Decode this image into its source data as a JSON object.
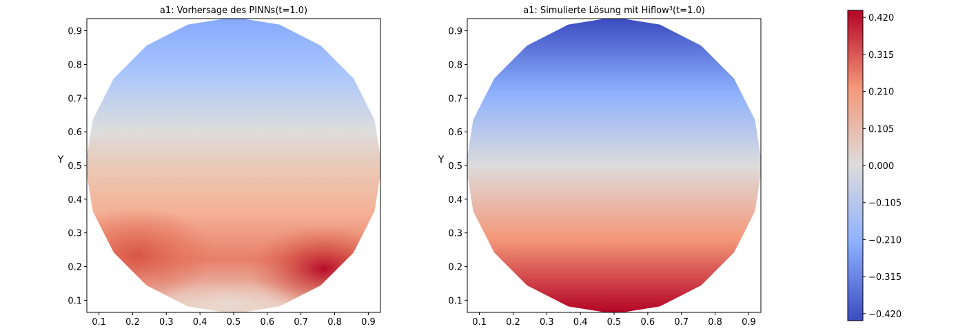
{
  "chart_data": [
    {
      "type": "heatmap",
      "title": "a1: Vorhersage des PINNs(t=1.0)",
      "ylabel": "Y",
      "xlim": [
        0.064,
        0.936
      ],
      "ylim": [
        0.064,
        0.936
      ],
      "xticks": [
        0.1,
        0.2,
        0.3,
        0.4,
        0.5,
        0.6,
        0.7,
        0.8,
        0.9
      ],
      "yticks": [
        0.1,
        0.2,
        0.3,
        0.4,
        0.5,
        0.6,
        0.7,
        0.8,
        0.9
      ],
      "xtick_labels": [
        "0.1",
        "0.2",
        "0.3",
        "0.4",
        "0.5",
        "0.6",
        "0.7",
        "0.8",
        "0.9"
      ],
      "ytick_labels": [
        "0.1",
        "0.2",
        "0.3",
        "0.4",
        "0.5",
        "0.6",
        "0.7",
        "0.8",
        "0.9"
      ],
      "domain": "circle centered (0.5, 0.5), radius ~0.44",
      "colormap": "coolwarm",
      "field_samples": [
        {
          "x": 0.5,
          "y": 0.93,
          "value": -0.26
        },
        {
          "x": 0.5,
          "y": 0.8,
          "value": -0.15
        },
        {
          "x": 0.5,
          "y": 0.68,
          "value": 0.0
        },
        {
          "x": 0.5,
          "y": 0.55,
          "value": 0.1
        },
        {
          "x": 0.5,
          "y": 0.42,
          "value": 0.18
        },
        {
          "x": 0.5,
          "y": 0.3,
          "value": 0.22
        },
        {
          "x": 0.2,
          "y": 0.25,
          "value": 0.33
        },
        {
          "x": 0.8,
          "y": 0.18,
          "value": 0.43
        },
        {
          "x": 0.5,
          "y": 0.1,
          "value": 0.1
        }
      ]
    },
    {
      "type": "heatmap",
      "title": "a1: Simulierte Lösung mit Hiflow³(t=1.0)",
      "ylabel": "Y",
      "xlim": [
        0.064,
        0.936
      ],
      "ylim": [
        0.064,
        0.936
      ],
      "xticks": [
        0.1,
        0.2,
        0.3,
        0.4,
        0.5,
        0.6,
        0.7,
        0.8,
        0.9
      ],
      "yticks": [
        0.1,
        0.2,
        0.3,
        0.4,
        0.5,
        0.6,
        0.7,
        0.8,
        0.9
      ],
      "xtick_labels": [
        "0.1",
        "0.2",
        "0.3",
        "0.4",
        "0.5",
        "0.6",
        "0.7",
        "0.8",
        "0.9"
      ],
      "ytick_labels": [
        "0.1",
        "0.2",
        "0.3",
        "0.4",
        "0.5",
        "0.6",
        "0.7",
        "0.8",
        "0.9"
      ],
      "domain": "circle centered (0.5, 0.5), radius ~0.44",
      "colormap": "coolwarm",
      "field": "linear in y: value = -(y - 0.5) * 0.98",
      "field_samples": [
        {
          "y": 0.93,
          "value": -0.42
        },
        {
          "y": 0.5,
          "value": 0.0
        },
        {
          "y": 0.07,
          "value": 0.42
        }
      ]
    }
  ],
  "colorbar": {
    "colormap": "coolwarm",
    "vmin": -0.44,
    "vmax": 0.44,
    "ticks": [
      -0.42,
      -0.315,
      -0.21,
      -0.105,
      0.0,
      0.105,
      0.21,
      0.315,
      0.42
    ],
    "tick_labels": [
      "−0.420",
      "−0.315",
      "−0.210",
      "−0.105",
      "0.000",
      "0.105",
      "0.210",
      "0.315",
      "0.420"
    ]
  }
}
